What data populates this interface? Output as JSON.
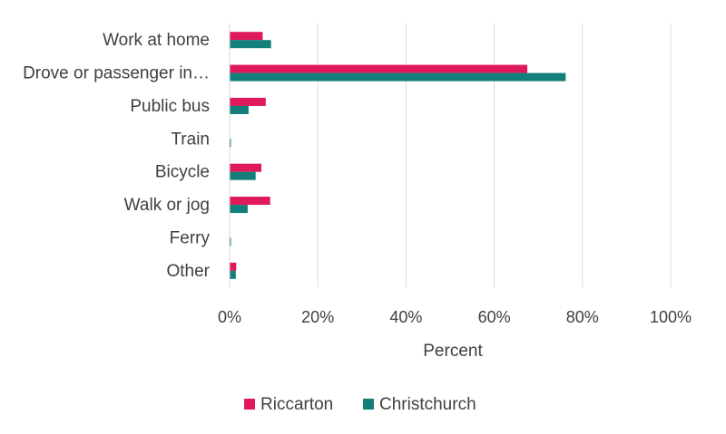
{
  "chart_data": {
    "type": "bar",
    "orientation": "horizontal",
    "categories": [
      "Work at home",
      "Drove or passenger in…",
      "Public bus",
      "Train",
      "Bicycle",
      "Walk or jog",
      "Ferry",
      "Other"
    ],
    "series": [
      {
        "name": "Riccarton",
        "color": "#e0195a",
        "values": [
          7.5,
          67.5,
          8.2,
          0.0,
          7.2,
          9.2,
          0.0,
          1.5
        ]
      },
      {
        "name": "Christchurch",
        "color": "#127f7a",
        "values": [
          9.4,
          76.2,
          4.3,
          0.3,
          5.9,
          4.1,
          0.3,
          1.4
        ]
      }
    ],
    "xlabel": "Percent",
    "xlim": [
      0,
      100
    ],
    "xticks": [
      0,
      20,
      40,
      60,
      80,
      100
    ],
    "tick_suffix": "%",
    "grid": true,
    "legend_position": "bottom",
    "gridline_color": "#d9d9d9",
    "axis_color": "#d9d9d9"
  }
}
